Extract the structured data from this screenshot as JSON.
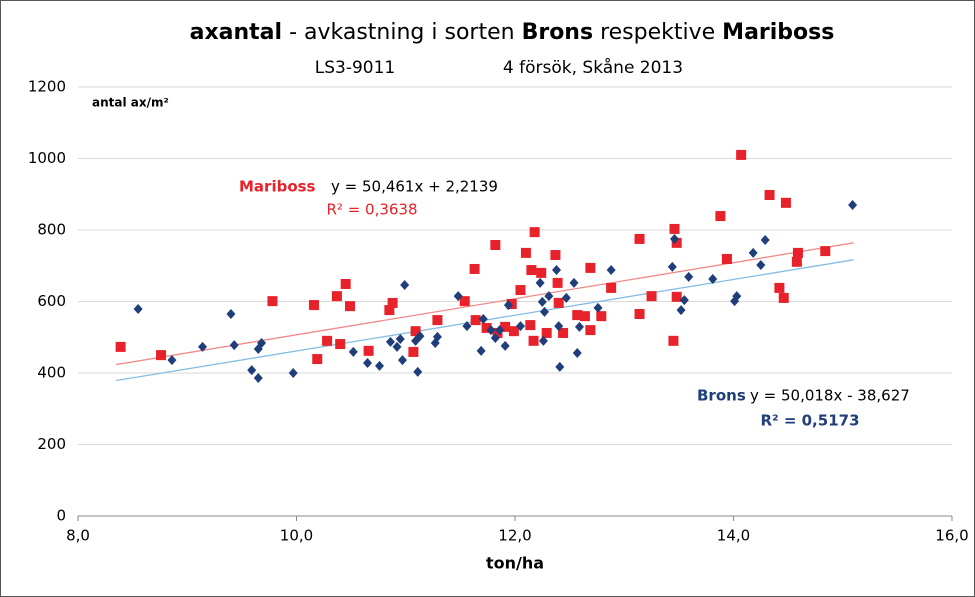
{
  "chart_data": {
    "type": "scatter",
    "title_parts": [
      "axantal",
      "- avkastning i sorten",
      "Brons",
      "respektive",
      "Mariboss"
    ],
    "title_bold": [
      0,
      2,
      4
    ],
    "subtitle_parts": [
      "LS3-9011",
      "4 försök, Skåne 2013"
    ],
    "y_label": "antal ax/m²",
    "x_label": "ton/ha",
    "xlim": [
      8,
      16
    ],
    "ylim": [
      0,
      1200
    ],
    "xticks": [
      {
        "value": 8,
        "label": "8,0"
      },
      {
        "value": 10,
        "label": "10,0"
      },
      {
        "value": 12,
        "label": "12,0"
      },
      {
        "value": 14,
        "label": "14,0"
      },
      {
        "value": 16,
        "label": "16,0"
      }
    ],
    "yticks": [
      0,
      200,
      400,
      600,
      800,
      1000,
      1200
    ],
    "grid": true,
    "series": [
      {
        "name": "Mariboss",
        "color": "#e8222a",
        "marker": "square",
        "trend_color": "#f08a8a",
        "equation": "y = 50,461x + 2,2139",
        "r2": "R² = 0,3638",
        "trendline": {
          "slope": 50.461,
          "intercept": 2.2139,
          "x": [
            8.35,
            15.1
          ]
        },
        "x": [
          8.39,
          8.76,
          9.78,
          10.16,
          10.19,
          10.28,
          10.37,
          10.4,
          10.45,
          10.49,
          10.66,
          10.85,
          10.88,
          11.07,
          11.09,
          11.29,
          11.54,
          11.63,
          11.64,
          11.74,
          11.82,
          11.84,
          11.91,
          11.97,
          11.99,
          12.05,
          12.1,
          12.14,
          12.15,
          12.17,
          12.18,
          12.24,
          12.29,
          12.37,
          12.39,
          12.4,
          12.44,
          12.57,
          12.64,
          12.69,
          12.69,
          12.79,
          12.88,
          13.14,
          13.14,
          13.25,
          13.46,
          13.45,
          13.48,
          13.48,
          13.88,
          13.94,
          14.07,
          14.33,
          14.42,
          14.46,
          14.48,
          14.58,
          14.59,
          14.84
        ],
        "values": [
          473,
          450,
          601,
          590,
          439,
          490,
          615,
          481,
          649,
          587,
          462,
          576,
          596,
          459,
          517,
          548,
          601,
          691,
          548,
          526,
          758,
          512,
          529,
          593,
          517,
          632,
          736,
          534,
          688,
          490,
          794,
          680,
          512,
          730,
          652,
          596,
          512,
          562,
          559,
          694,
          520,
          559,
          638,
          775,
          565,
          615,
          803,
          490,
          764,
          613,
          839,
          719,
          1010,
          898,
          638,
          610,
          876,
          711,
          736,
          741
        ]
      },
      {
        "name": "Brons",
        "color": "#1f3e7a",
        "marker": "diamond",
        "trend_color": "#86bde4",
        "equation": "y = 50,018x - 38,627",
        "r2": "R² = 0,5173",
        "trendline": {
          "slope": 50.018,
          "intercept": -38.627,
          "x": [
            8.35,
            15.1
          ]
        },
        "x": [
          8.55,
          8.86,
          9.14,
          9.4,
          9.43,
          9.59,
          9.65,
          9.65,
          9.68,
          9.97,
          10.52,
          10.65,
          10.76,
          10.86,
          10.92,
          10.95,
          10.97,
          10.99,
          11.09,
          11.11,
          11.13,
          11.27,
          11.29,
          11.48,
          11.56,
          11.69,
          11.71,
          11.78,
          11.82,
          11.86,
          11.91,
          11.94,
          12.05,
          12.23,
          12.25,
          12.26,
          12.27,
          12.31,
          12.38,
          12.4,
          12.41,
          12.47,
          12.54,
          12.57,
          12.59,
          12.76,
          12.88,
          13.44,
          13.46,
          13.52,
          13.55,
          13.59,
          13.81,
          14.01,
          14.03,
          14.18,
          14.25,
          14.29,
          15.09
        ],
        "values": [
          579,
          436,
          473,
          565,
          478,
          408,
          386,
          467,
          484,
          400,
          459,
          428,
          420,
          487,
          473,
          495,
          436,
          646,
          490,
          403,
          503,
          484,
          501,
          615,
          531,
          462,
          551,
          520,
          498,
          520,
          476,
          590,
          531,
          652,
          599,
          490,
          571,
          615,
          688,
          531,
          417,
          610,
          652,
          456,
          529,
          582,
          688,
          697,
          775,
          576,
          604,
          669,
          663,
          601,
          615,
          736,
          702,
          772,
          870
        ]
      }
    ]
  }
}
